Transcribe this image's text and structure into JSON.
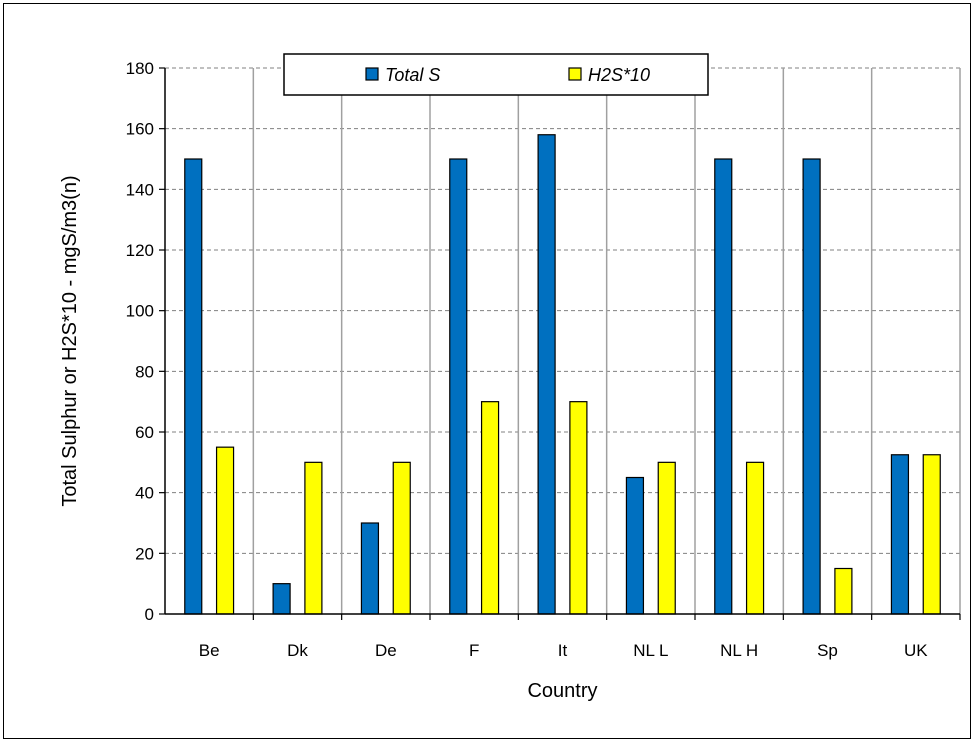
{
  "chart_data": {
    "type": "bar",
    "categories": [
      "Be",
      "Dk",
      "De",
      "F",
      "It",
      "NL L",
      "NL H",
      "Sp",
      "UK"
    ],
    "series": [
      {
        "name": "Total S",
        "color": "#0070C0",
        "values": [
          150,
          10,
          30,
          150,
          158,
          45,
          150,
          150,
          52.5
        ]
      },
      {
        "name": "H2S*10",
        "color": "#FFFF00",
        "values": [
          55,
          50,
          50,
          70,
          70,
          50,
          50,
          15,
          52.5
        ]
      }
    ],
    "title": "",
    "xlabel": "Country",
    "ylabel": "Total Sulphur or H2S*10 - mgS/m3(n)",
    "ylim": [
      0,
      180
    ],
    "yticks": [
      0,
      20,
      40,
      60,
      80,
      100,
      120,
      140,
      160,
      180
    ],
    "grid": {
      "horizontal": "dashed",
      "vertical": "solid"
    },
    "legend": "top-center"
  }
}
